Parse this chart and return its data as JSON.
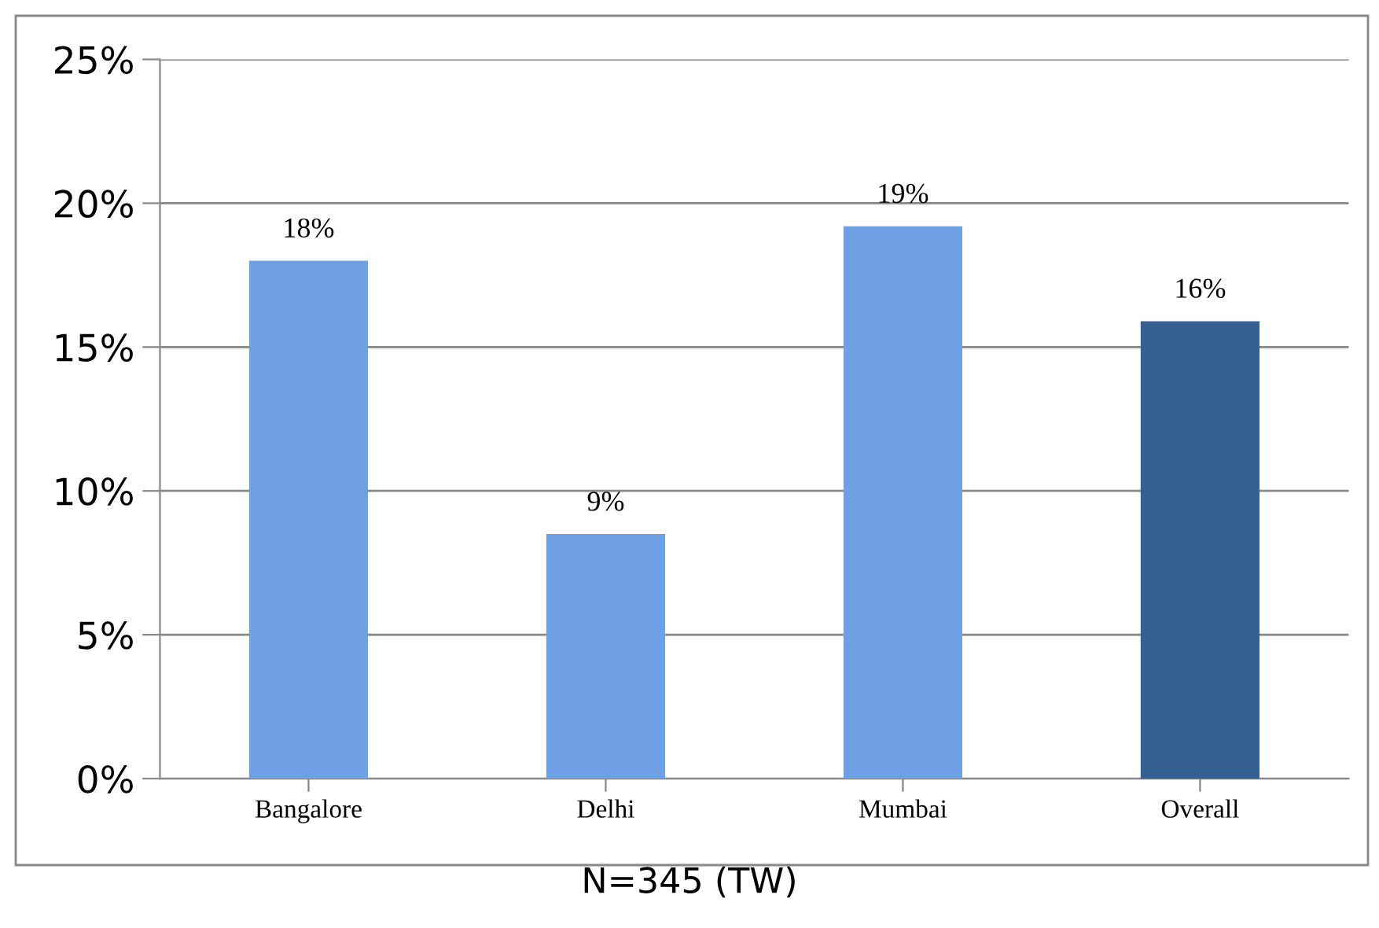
{
  "chart_data": {
    "type": "bar",
    "categories": [
      "Bangalore",
      "Delhi",
      "Mumbai",
      "Overall"
    ],
    "values": [
      18,
      8.5,
      19.2,
      15.9
    ],
    "value_labels": [
      "18%",
      "9%",
      "19%",
      "16%"
    ],
    "colors": [
      "#6fa0e6",
      "#6fa0e6",
      "#6fa0e6",
      "#366092"
    ],
    "ylim": [
      0,
      25
    ],
    "yticks": [
      {
        "value": 0,
        "label": "0%"
      },
      {
        "value": 5,
        "label": "5%"
      },
      {
        "value": 10,
        "label": "10%"
      },
      {
        "value": 15,
        "label": "15%"
      },
      {
        "value": 20,
        "label": "20%"
      },
      {
        "value": 25,
        "label": "25%"
      }
    ],
    "grid": "y",
    "annotations": [
      "N=345 (TW)"
    ]
  }
}
